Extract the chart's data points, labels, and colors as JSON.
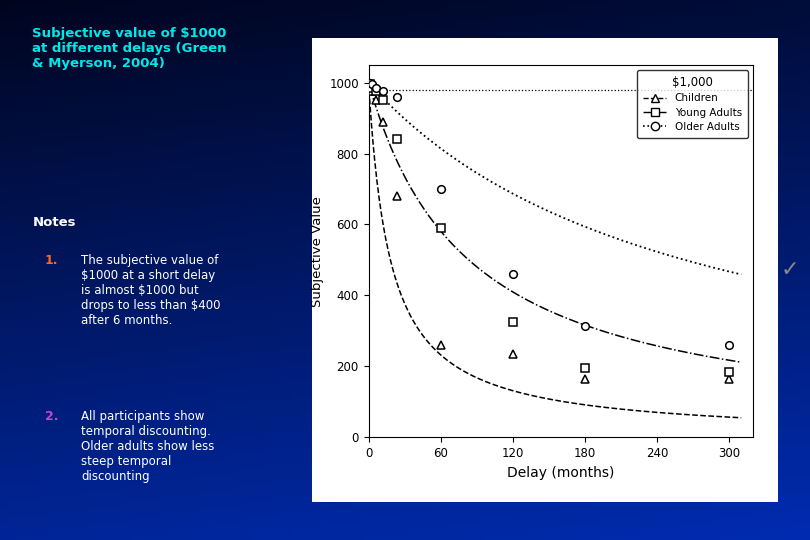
{
  "title_text": "Subjective value of $1000\nat different delays (Green\n& Myerson, 2004)",
  "title_color": "#00e8e8",
  "notes_label": "Notes",
  "notes_color": "#ffffff",
  "note1_number_color": "#ff6622",
  "note2_number_color": "#cc44cc",
  "note1_text": "The subjective value of\n$1000 at a short delay\nis almost $1000 but\ndrops to less than $400\nafter 6 months.",
  "note2_text": "All participants show\ntemporal discounting.\nOlder adults show less\nsteep temporal\ndiscounting",
  "xlabel": "Delay (months)",
  "ylabel": "Subjective Value",
  "xlim": [
    0,
    320
  ],
  "ylim": [
    0,
    1050
  ],
  "xticks": [
    0,
    60,
    120,
    180,
    240,
    300
  ],
  "yticks": [
    0,
    200,
    400,
    600,
    800,
    1000
  ],
  "legend_title": "$1,000",
  "legend_items": [
    "Children",
    "Young Adults",
    "Older Adults"
  ],
  "children_x": [
    1,
    3,
    6,
    12,
    24,
    60,
    120,
    180,
    300
  ],
  "children_y": [
    990,
    975,
    950,
    890,
    680,
    260,
    235,
    165,
    165
  ],
  "young_adults_x": [
    1,
    3,
    6,
    12,
    24,
    60,
    120,
    180,
    300
  ],
  "young_adults_y": [
    995,
    985,
    975,
    950,
    840,
    590,
    325,
    195,
    185
  ],
  "older_adults_x": [
    1,
    3,
    6,
    12,
    24,
    60,
    120,
    180,
    300
  ],
  "older_adults_y": [
    1000,
    995,
    985,
    975,
    960,
    700,
    460,
    315,
    260
  ],
  "k_children": 0.055,
  "k_young": 0.012,
  "k_older": 0.0038,
  "bg_top_color": "#000830",
  "bg_bottom_color": "#0033cc"
}
